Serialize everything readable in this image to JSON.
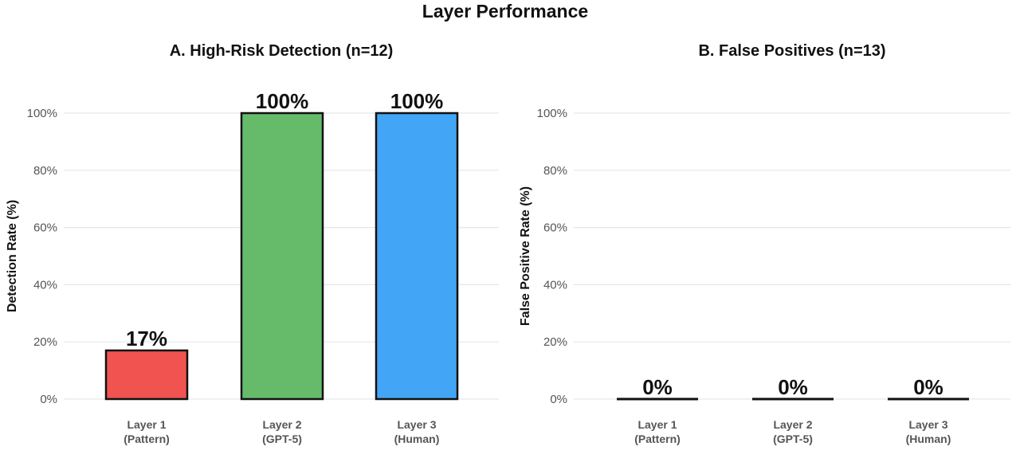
{
  "figure_title": "Layer Performance",
  "colors": {
    "layer1": "#f05350",
    "layer2": "#66bb6a",
    "layer3": "#42a5f5",
    "outline": "#111111",
    "grid": "#e6e6e6"
  },
  "chart_data": [
    {
      "type": "bar",
      "title": "A. High-Risk Detection (n=12)",
      "ylabel": "Detection Rate (%)",
      "xlabel": "",
      "categories": [
        [
          "Layer 1",
          "(Pattern)"
        ],
        [
          "Layer 2",
          "(GPT-5)"
        ],
        [
          "Layer 3",
          "(Human)"
        ]
      ],
      "values": [
        17,
        100,
        100
      ],
      "data_labels": [
        "17%",
        "100%",
        "100%"
      ],
      "ylim": [
        0,
        100
      ],
      "yticks": [
        0,
        20,
        40,
        60,
        80,
        100
      ],
      "ytick_labels": [
        "0%",
        "20%",
        "40%",
        "60%",
        "80%",
        "100%"
      ],
      "grid": true,
      "legend": "none"
    },
    {
      "type": "bar",
      "title": "B. False Positives (n=13)",
      "ylabel": "False Positive Rate (%)",
      "xlabel": "",
      "categories": [
        [
          "Layer 1",
          "(Pattern)"
        ],
        [
          "Layer 2",
          "(GPT-5)"
        ],
        [
          "Layer 3",
          "(Human)"
        ]
      ],
      "values": [
        0,
        0,
        0
      ],
      "data_labels": [
        "0%",
        "0%",
        "0%"
      ],
      "ylim": [
        0,
        100
      ],
      "yticks": [
        0,
        20,
        40,
        60,
        80,
        100
      ],
      "ytick_labels": [
        "0%",
        "20%",
        "40%",
        "60%",
        "80%",
        "100%"
      ],
      "grid": true,
      "legend": "none"
    }
  ]
}
